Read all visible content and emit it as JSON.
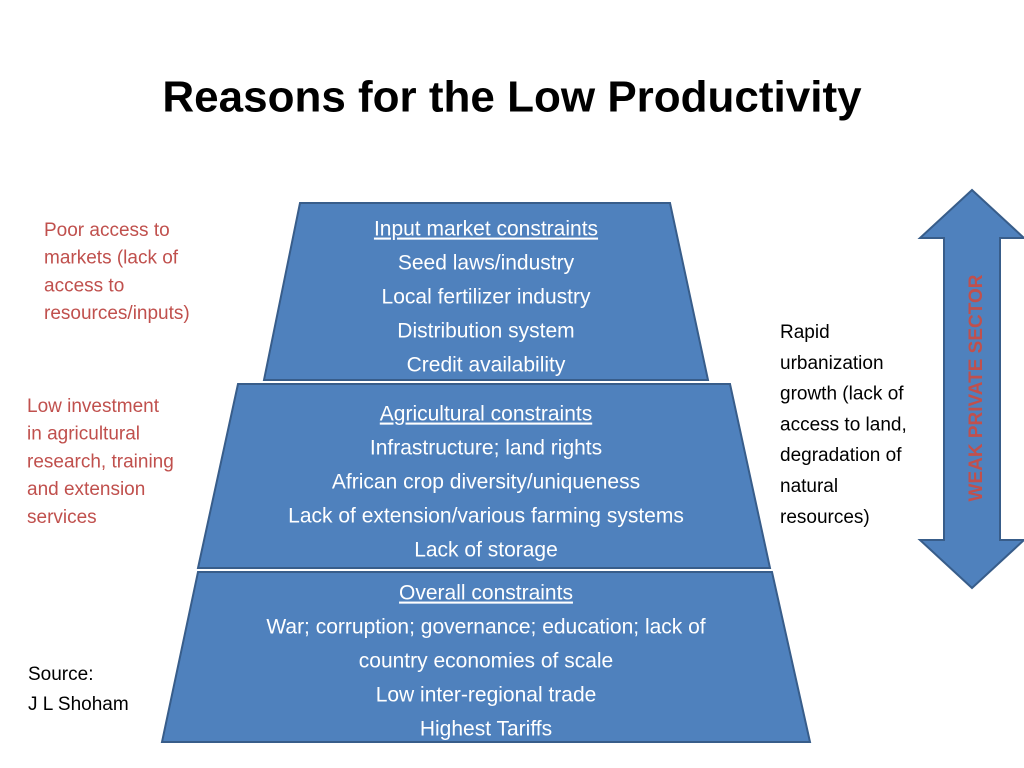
{
  "title": "Reasons for the Low Productivity",
  "levels": [
    {
      "heading": "Input market constraints",
      "lines": [
        "Seed laws/industry",
        "Local fertilizer industry",
        "Distribution system",
        "Credit availability"
      ]
    },
    {
      "heading": "Agricultural constraints",
      "lines": [
        "Infrastructure; land rights",
        "African crop diversity/uniqueness",
        "Lack of extension/various farming systems",
        "Lack of storage"
      ]
    },
    {
      "heading": "Overall constraints",
      "lines": [
        "War; corruption; governance; education;  lack of",
        "country economies of scale",
        "Low inter-regional trade",
        "Highest Tariffs"
      ]
    }
  ],
  "left_notes": [
    [
      "Poor access to",
      "markets (lack of",
      "access to",
      "resources/inputs)"
    ],
    [
      "Low investment",
      "in agricultural",
      "research, training",
      "and extension",
      "services"
    ]
  ],
  "right_note": [
    "Rapid",
    "urbanization",
    "growth (lack of",
    "access to land,",
    "degradation of",
    "natural",
    "resources)"
  ],
  "source": [
    "Source:",
    "J L Shoham"
  ],
  "arrow_label": "WEAK PRIVATE SECTOR"
}
